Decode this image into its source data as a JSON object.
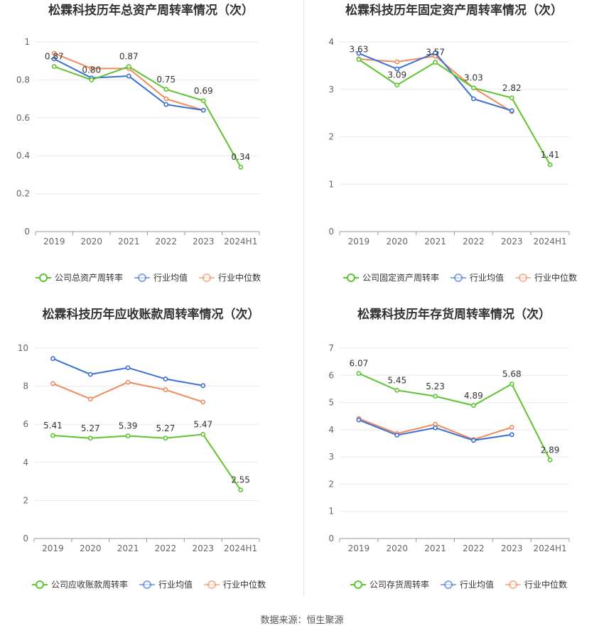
{
  "colors": {
    "company": "#5ec42f",
    "avg": "#3b6fd6",
    "median": "#f08a5d",
    "grid": "#e9e9ef",
    "axis": "#999999"
  },
  "legend": {
    "avg": "行业均值",
    "median": "行业中位数"
  },
  "source": "数据来源：恒生聚源",
  "chart_data": [
    {
      "type": "line",
      "title": "松霖科技历年总资产周转率情况（次）",
      "categories": [
        "2019",
        "2020",
        "2021",
        "2022",
        "2023",
        "2024H1"
      ],
      "ylim": [
        0,
        1
      ],
      "yticks": [
        "0",
        "0.2",
        "0.4",
        "0.6",
        "0.8",
        "1"
      ],
      "series": [
        {
          "name": "公司总资产周转率",
          "role": "company",
          "values": [
            0.87,
            0.8,
            0.87,
            0.75,
            0.69,
            0.34
          ],
          "labels": [
            "0.87",
            "0.80",
            "0.87",
            "0.75",
            "0.69",
            "0.34"
          ]
        },
        {
          "name": "行业均值",
          "role": "avg",
          "values": [
            0.91,
            0.81,
            0.82,
            0.67,
            0.64,
            null
          ]
        },
        {
          "name": "行业中位数",
          "role": "median",
          "values": [
            0.94,
            0.86,
            0.86,
            0.7,
            0.64,
            null
          ]
        }
      ]
    },
    {
      "type": "line",
      "title": "松霖科技历年固定资产周转率情况（次）",
      "categories": [
        "2019",
        "2020",
        "2021",
        "2022",
        "2023",
        "2024H1"
      ],
      "ylim": [
        0,
        4
      ],
      "yticks": [
        "0",
        "1",
        "2",
        "3",
        "4"
      ],
      "series": [
        {
          "name": "公司固定资产周转率",
          "role": "company",
          "values": [
            3.63,
            3.09,
            3.57,
            3.03,
            2.82,
            1.41
          ],
          "labels": [
            "3.63",
            "3.09",
            "3.57",
            "3.03",
            "2.82",
            "1.41"
          ]
        },
        {
          "name": "行业均值",
          "role": "avg",
          "values": [
            3.76,
            3.43,
            3.77,
            2.8,
            2.55,
            null
          ]
        },
        {
          "name": "行业中位数",
          "role": "median",
          "values": [
            3.64,
            3.58,
            3.7,
            3.03,
            2.53,
            null
          ]
        }
      ]
    },
    {
      "type": "line",
      "title": "松霖科技历年应收账款周转率情况（次）",
      "categories": [
        "2019",
        "2020",
        "2021",
        "2022",
        "2023",
        "2024H1"
      ],
      "ylim": [
        0,
        10
      ],
      "yticks": [
        "0",
        "2",
        "4",
        "6",
        "8",
        "10"
      ],
      "series": [
        {
          "name": "公司应收账款周转率",
          "role": "company",
          "values": [
            5.41,
            5.27,
            5.39,
            5.27,
            5.47,
            2.55
          ],
          "labels": [
            "5.41",
            "5.27",
            "5.39",
            "5.27",
            "5.47",
            "2.55"
          ]
        },
        {
          "name": "行业均值",
          "role": "avg",
          "values": [
            9.45,
            8.62,
            8.97,
            8.38,
            8.03,
            null
          ]
        },
        {
          "name": "行业中位数",
          "role": "median",
          "values": [
            8.14,
            7.33,
            8.21,
            7.81,
            7.17,
            null
          ]
        }
      ]
    },
    {
      "type": "line",
      "title": "松霖科技历年存货周转率情况（次）",
      "categories": [
        "2019",
        "2020",
        "2021",
        "2022",
        "2023",
        "2024H1"
      ],
      "ylim": [
        0,
        7
      ],
      "yticks": [
        "0",
        "1",
        "2",
        "3",
        "4",
        "5",
        "6",
        "7"
      ],
      "series": [
        {
          "name": "公司存货周转率",
          "role": "company",
          "values": [
            6.07,
            5.45,
            5.23,
            4.89,
            5.68,
            2.89
          ],
          "labels": [
            "6.07",
            "5.45",
            "5.23",
            "4.89",
            "5.68",
            "2.89"
          ]
        },
        {
          "name": "行业均值",
          "role": "avg",
          "values": [
            4.36,
            3.8,
            4.07,
            3.61,
            3.82,
            null
          ]
        },
        {
          "name": "行业中位数",
          "role": "median",
          "values": [
            4.41,
            3.86,
            4.2,
            3.64,
            4.09,
            null
          ]
        }
      ]
    }
  ]
}
